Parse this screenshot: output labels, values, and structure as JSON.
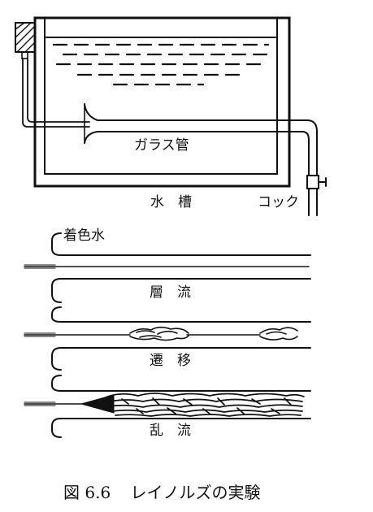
{
  "apparatus": {
    "tube_label": "ガラス管",
    "tank_label": "水　槽",
    "valve_label": "コック"
  },
  "flow_regimes": {
    "dye_label": "着色水",
    "laminar_label": "層　流",
    "transitional_label": "遷　移",
    "turbulent_label": "乱　流"
  },
  "caption": {
    "figure_number": "図 6.6",
    "title": "レイノルズの実験"
  }
}
